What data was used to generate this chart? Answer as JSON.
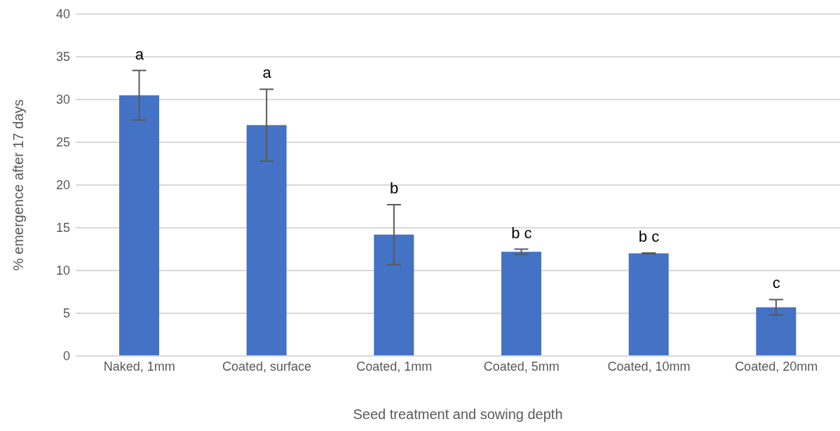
{
  "chart_data": {
    "type": "bar",
    "xlabel": "Seed treatment and sowing depth",
    "ylabel": "% emergence after 17 days",
    "categories": [
      "Naked, 1mm",
      "Coated, surface",
      "Coated, 1mm",
      "Coated, 5mm",
      "Coated, 10mm",
      "Coated, 20mm"
    ],
    "values": [
      30.5,
      27.0,
      14.2,
      12.2,
      12.0,
      5.7
    ],
    "errors": [
      2.9,
      4.2,
      3.5,
      0.3,
      0.05,
      0.9
    ],
    "color": "#4472c4",
    "ylim": [
      0,
      40
    ],
    "yticks": [
      0,
      5,
      10,
      15,
      20,
      25,
      30,
      35,
      40
    ],
    "grid": "y",
    "legend": false,
    "annotations": [
      "a",
      "a",
      "b",
      "b c",
      "b c",
      "c"
    ]
  }
}
